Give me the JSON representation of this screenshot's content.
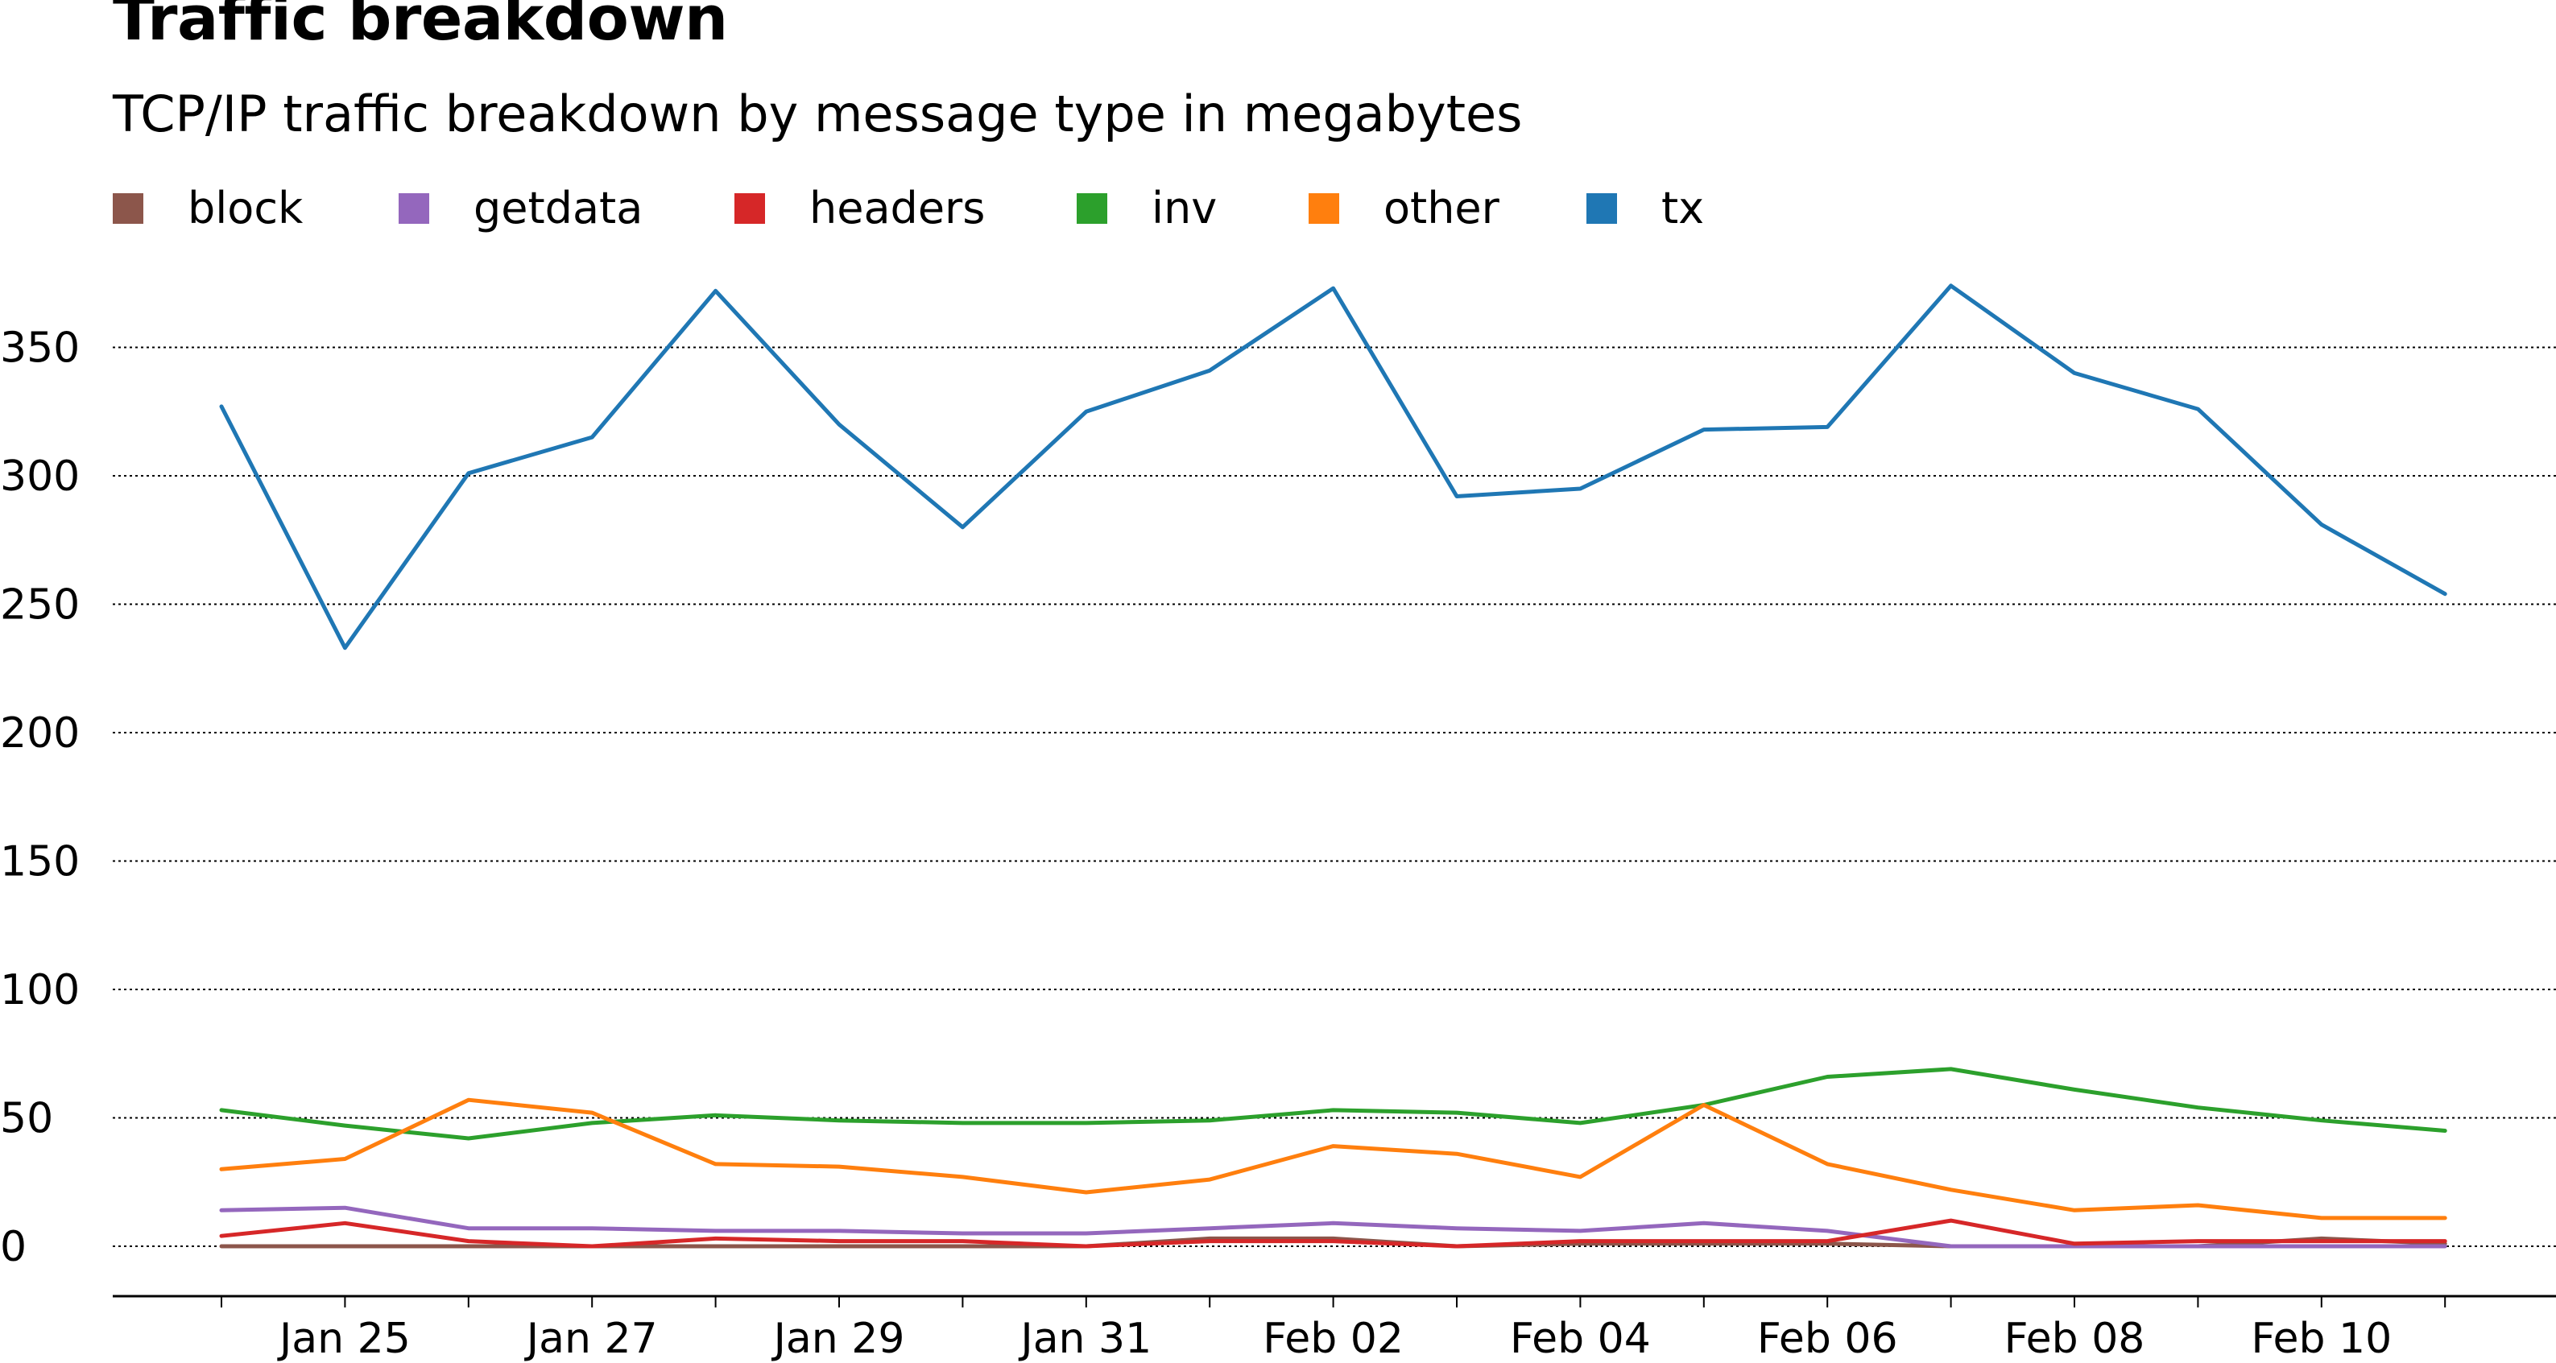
{
  "chart_data": {
    "type": "line",
    "title": "Traffic breakdown",
    "subtitle": "TCP/IP traffic breakdown by message type in megabytes",
    "xlabel": "",
    "ylabel": "",
    "x": [
      "2023-01-24",
      "2023-01-25",
      "2023-01-26",
      "2023-01-27",
      "2023-01-28",
      "2023-01-29",
      "2023-01-30",
      "2023-01-31",
      "2023-02-01",
      "2023-02-02",
      "2023-02-03",
      "2023-02-04",
      "2023-02-05",
      "2023-02-06",
      "2023-02-07",
      "2023-02-08",
      "2023-02-09",
      "2023-02-10",
      "2023-02-11"
    ],
    "x_tick_labels": [
      "Jan 25",
      "Jan 27",
      "Jan 29",
      "Jan 31",
      "Feb 02",
      "Feb 04",
      "Feb 06",
      "Feb 08",
      "Feb 10"
    ],
    "x_tick_dates": [
      "2023-01-25",
      "2023-01-27",
      "2023-01-29",
      "2023-01-31",
      "2023-02-02",
      "2023-02-04",
      "2023-02-06",
      "2023-02-08",
      "2023-02-10"
    ],
    "ylim": [
      -20,
      375
    ],
    "y_ticks": [
      0,
      50,
      100,
      150,
      200,
      250,
      300,
      350
    ],
    "grid": "horizontal dotted",
    "legend_position": "top-left",
    "series": [
      {
        "name": "block",
        "color": "#8c564b",
        "values": [
          0,
          0,
          0,
          0,
          0,
          0,
          0,
          0,
          3,
          3,
          0,
          1,
          1,
          1,
          0,
          0,
          0,
          3,
          1
        ]
      },
      {
        "name": "getdata",
        "color": "#9467bd",
        "values": [
          14,
          15,
          7,
          7,
          6,
          6,
          5,
          5,
          7,
          9,
          7,
          6,
          9,
          6,
          0,
          0,
          0,
          0,
          0
        ]
      },
      {
        "name": "headers",
        "color": "#d62728",
        "values": [
          4,
          9,
          2,
          0,
          3,
          2,
          2,
          0,
          2,
          2,
          0,
          2,
          2,
          2,
          10,
          1,
          2,
          2,
          2
        ]
      },
      {
        "name": "inv",
        "color": "#2ca02c",
        "values": [
          53,
          47,
          42,
          48,
          51,
          49,
          48,
          48,
          49,
          53,
          52,
          48,
          55,
          66,
          69,
          61,
          54,
          49,
          45
        ]
      },
      {
        "name": "other",
        "color": "#ff7f0e",
        "values": [
          30,
          34,
          57,
          52,
          32,
          31,
          27,
          21,
          26,
          39,
          36,
          27,
          55,
          32,
          22,
          14,
          16,
          11,
          11
        ]
      },
      {
        "name": "tx",
        "color": "#1f77b4",
        "values": [
          327,
          233,
          301,
          315,
          372,
          320,
          280,
          325,
          341,
          373,
          292,
          295,
          318,
          319,
          374,
          340,
          326,
          281,
          254
        ]
      }
    ]
  }
}
